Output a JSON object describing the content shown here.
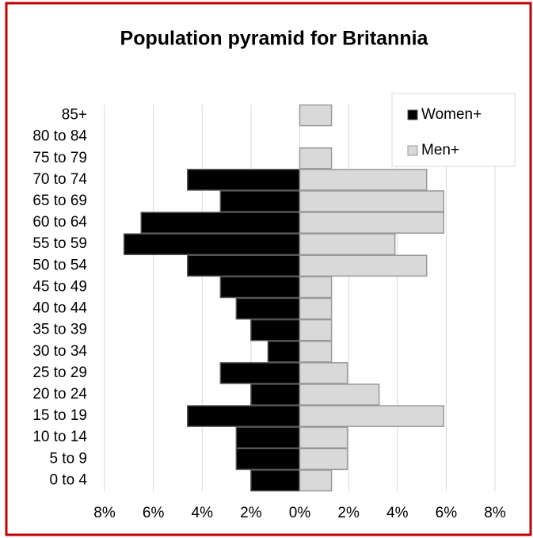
{
  "chart_data": {
    "type": "pyramid",
    "title": "Population pyramid for Britannia",
    "categories": [
      "0 to 4",
      "5 to 9",
      "10 to 14",
      "15 to 19",
      "20 to 24",
      "25 to 29",
      "30 to 34",
      "35 to 39",
      "40 to 44",
      "45 to 49",
      "50 to 54",
      "55 to 59",
      "60 to 64",
      "65 to 69",
      "70 to 74",
      "75 to 79",
      "80 to 84",
      "85+"
    ],
    "series": [
      {
        "name": "Women+",
        "color": "#000000",
        "values": [
          -2,
          -2.6,
          -2.6,
          -4.6,
          -2,
          -3.25,
          -1.3,
          -2,
          -2.6,
          -3.25,
          -4.6,
          -7.2,
          -6.5,
          -3.25,
          -4.6,
          0,
          0,
          0
        ]
      },
      {
        "name": "Men+",
        "color": "#d9d9d9",
        "values": [
          1.3,
          1.95,
          1.95,
          5.9,
          3.25,
          1.95,
          1.3,
          1.3,
          1.3,
          1.3,
          5.2,
          3.9,
          5.9,
          5.9,
          5.2,
          1.3,
          0,
          1.3
        ]
      }
    ],
    "xlim": [
      -8,
      8
    ],
    "xticks": [
      {
        "value": -8,
        "label": "8%"
      },
      {
        "value": -6,
        "label": "6%"
      },
      {
        "value": -4,
        "label": "4%"
      },
      {
        "value": -2,
        "label": "2%"
      },
      {
        "value": 0,
        "label": "0%"
      },
      {
        "value": 2,
        "label": "2%"
      },
      {
        "value": 4,
        "label": "4%"
      },
      {
        "value": 6,
        "label": "6%"
      },
      {
        "value": 8,
        "label": "8%"
      }
    ],
    "grid": true,
    "legend": "top-right"
  }
}
